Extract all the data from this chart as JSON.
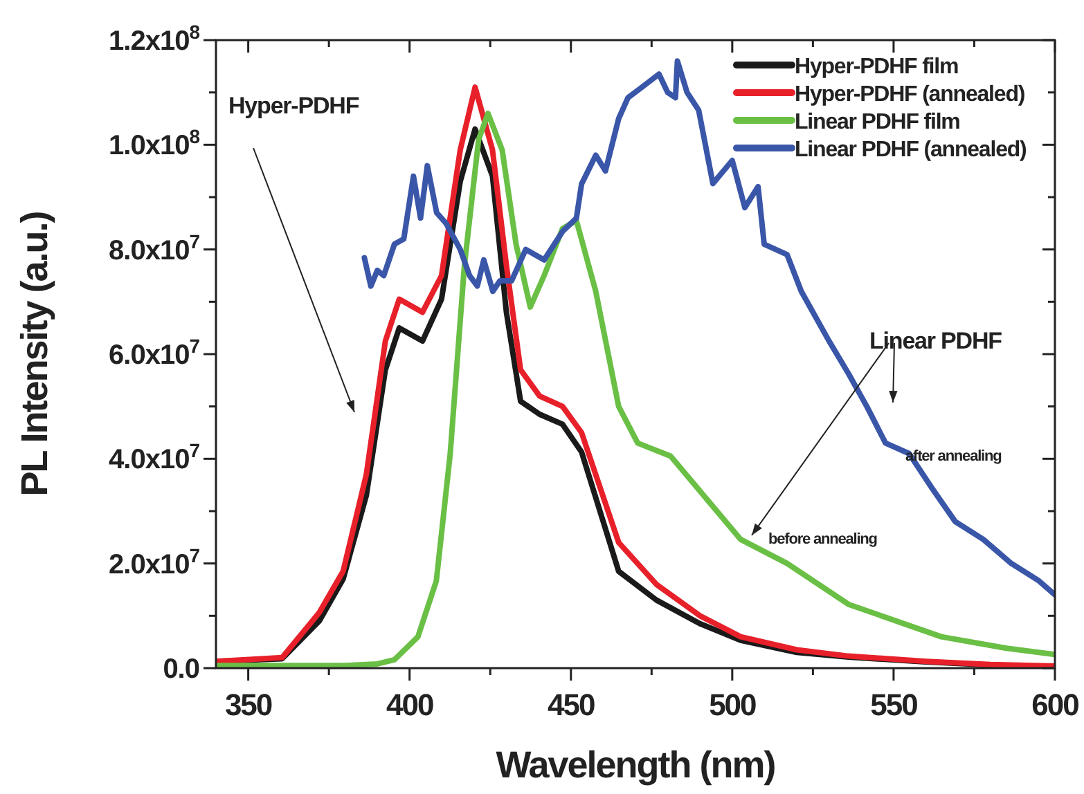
{
  "chart_data": {
    "type": "line",
    "xlabel": "Wavelength (nm)",
    "ylabel": "PL Intensity (a.u.)",
    "xlim": [
      340,
      600
    ],
    "xticks": [
      350,
      {
        "value": 375,
        "label": null
      },
      400,
      {
        "value": 425,
        "label": null
      },
      450,
      {
        "value": 475,
        "label": null
      },
      500,
      {
        "value": 525,
        "label": null
      },
      550,
      {
        "value": 575,
        "label": null
      },
      600
    ],
    "ylim": [
      0,
      120000000.0
    ],
    "yticks": [
      {
        "value": 0,
        "label": "0.0"
      },
      {
        "value": 10000000.0,
        "label": null
      },
      {
        "value": 20000000.0,
        "label": "2.0x10$^{7}$"
      },
      {
        "value": 30000000.0,
        "label": null
      },
      {
        "value": 40000000.0,
        "label": "4.0x10$^{7}$"
      },
      {
        "value": 50000000.0,
        "label": null
      },
      {
        "value": 60000000.0,
        "label": "6.0x10$^{7}$"
      },
      {
        "value": 70000000.0,
        "label": null
      },
      {
        "value": 80000000.0,
        "label": "8.0x10$^{7}$"
      },
      {
        "value": 90000000.0,
        "label": null
      },
      {
        "value": 100000000.0,
        "label": "1.0x10$^{8}$"
      },
      {
        "value": 110000000.0,
        "label": null
      },
      {
        "value": 120000000.0,
        "label": "1.2x10$^{8}$"
      }
    ],
    "legend": "top right",
    "grid": false,
    "line_style": "solid",
    "marker": "none",
    "annotations": [
      "Hyper-PDHF",
      "Linear PDHF",
      "after annealing",
      "before annealing"
    ],
    "series": [
      {
        "name": "Hyper-PDHF film",
        "color": "#1a1a1a",
        "x": [
          340,
          360.5,
          372,
          379.4,
          386.6,
          392.5,
          396.8,
          404,
          409.9,
          415.7,
          420.3,
          425.7,
          430,
          434.4,
          440.3,
          447.4,
          453.3,
          464.8,
          476.5,
          490,
          502.6,
          520,
          536,
          560,
          580,
          600
        ],
        "values": [
          1300000.0,
          1800000.0,
          9000000.0,
          17000000.0,
          33000000.0,
          57000000.0,
          65000000.0,
          62500000.0,
          70500000.0,
          93000000.0,
          103000000.0,
          94000000.0,
          68000000.0,
          51000000.0,
          48500000.0,
          46600000.0,
          41300000.0,
          18500000.0,
          13000000.0,
          8500000.0,
          5300000.0,
          3000000.0,
          2100000.0,
          1200000.0,
          600000.0,
          300000.0
        ]
      },
      {
        "name": "Hyper-PDHF (annealed)",
        "color": "#e8202a",
        "x": [
          340,
          360.5,
          372,
          379.4,
          386.6,
          392.5,
          396.8,
          404,
          409.9,
          415.7,
          420.3,
          425.7,
          430,
          434.4,
          440.3,
          447.4,
          453.3,
          464.8,
          476.5,
          490,
          502.6,
          520,
          536,
          560,
          580,
          600
        ],
        "values": [
          1300000.0,
          2000000.0,
          10600000.0,
          18500000.0,
          37000000.0,
          62500000.0,
          70500000.0,
          68000000.0,
          75000000.0,
          99000000.0,
          111000000.0,
          99000000.0,
          77000000.0,
          57000000.0,
          52000000.0,
          50000000.0,
          45000000.0,
          24000000.0,
          16000000.0,
          10000000.0,
          6000000.0,
          3500000.0,
          2300000.0,
          1300000.0,
          700000.0,
          400000.0
        ]
      },
      {
        "name": "Linear PDHF film",
        "color": "#6abf45",
        "x": [
          340,
          360,
          380,
          390,
          395.3,
          402.6,
          408.3,
          412.6,
          417,
          421.4,
          424.3,
          428.7,
          433,
          437.4,
          441.7,
          447.4,
          451.7,
          457.7,
          464.8,
          470.7,
          480.9,
          492.5,
          502.6,
          517,
          536,
          564.8,
          585,
          600
        ],
        "values": [
          500000.0,
          500000.0,
          500000.0,
          800000.0,
          1600000.0,
          6000000.0,
          16700000.0,
          41000000.0,
          77000000.0,
          101000000.0,
          106000000.0,
          99000000.0,
          81000000.0,
          69000000.0,
          75000000.0,
          84000000.0,
          85500000.0,
          72000000.0,
          50000000.0,
          43000000.0,
          40500000.0,
          32000000.0,
          24600000.0,
          20000000.0,
          12200000.0,
          6000000.0,
          3800000.0,
          2600000.0
        ]
      },
      {
        "name": "Linear PDHF (annealed)",
        "color": "#3a56a8",
        "x": [
          386,
          388,
          390,
          392,
          395.3,
          398.2,
          401.2,
          403.4,
          405.5,
          408.4,
          411.3,
          415.7,
          418.6,
          421,
          423,
          425.8,
          428,
          431.6,
          436,
          441.7,
          447.5,
          451.7,
          453.3,
          457.7,
          460.7,
          464.8,
          467.7,
          472,
          477.3,
          480,
          482.4,
          483,
          486,
          489.6,
          494,
          500,
          503.9,
          508,
          509.9,
          517,
          521.4,
          530,
          536,
          541.7,
          547.5,
          554.8,
          562,
          569.1,
          577.8,
          586.5,
          595,
          600
        ],
        "values": [
          78400000.0,
          73000000.0,
          76000000.0,
          75000000.0,
          81000000.0,
          82000000.0,
          94000000.0,
          86000000.0,
          96000000.0,
          87000000.0,
          85000000.0,
          80000000.0,
          75000000.0,
          73000000.0,
          78000000.0,
          72000000.0,
          74000000.0,
          74000000.0,
          80000000.0,
          78000000.0,
          83500000.0,
          86000000.0,
          92500000.0,
          98000000.0,
          95000000.0,
          105000000.0,
          109000000.0,
          111000000.0,
          113500000.0,
          110000000.0,
          109000000.0,
          116000000.0,
          110000000.0,
          106600000.0,
          92600000.0,
          97000000.0,
          88000000.0,
          92000000.0,
          81000000.0,
          79000000.0,
          72000000.0,
          62500000.0,
          56300000.0,
          50000000.0,
          43000000.0,
          41000000.0,
          34300000.0,
          28000000.0,
          24600000.0,
          20000000.0,
          16700000.0,
          14000000.0
        ]
      }
    ]
  }
}
